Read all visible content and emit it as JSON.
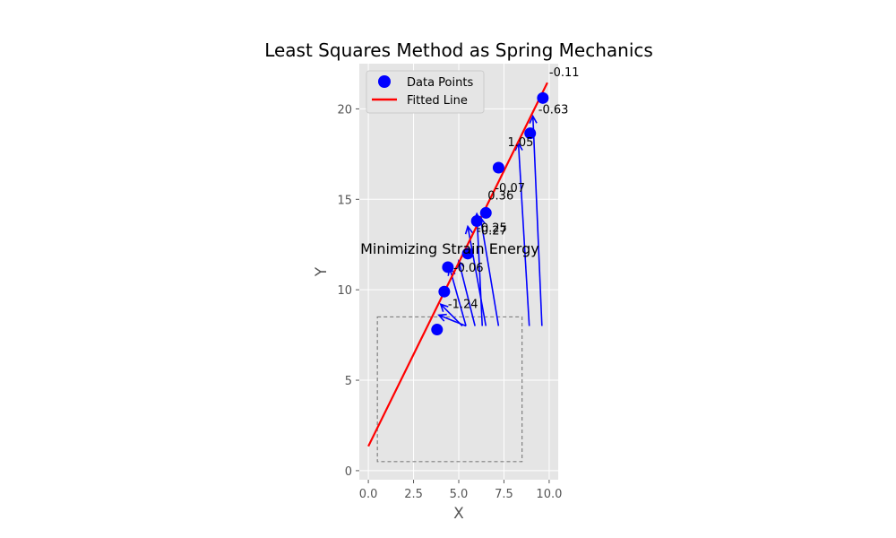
{
  "chart_data": {
    "type": "scatter",
    "title": "Least Squares Method as Spring Mechanics",
    "xlabel": "X",
    "ylabel": "Y",
    "xlim": [
      -0.5,
      10.5
    ],
    "ylim": [
      -0.5,
      22.5
    ],
    "xticks": [
      0.0,
      2.5,
      5.0,
      7.5,
      10.0
    ],
    "xtick_labels": [
      "0.0",
      "2.5",
      "5.0",
      "7.5",
      "10.0"
    ],
    "yticks": [
      0,
      5,
      10,
      15,
      20
    ],
    "ytick_labels": [
      "0",
      "5",
      "10",
      "15",
      "20"
    ],
    "grid": true,
    "legend": {
      "position": "top-left",
      "entries": [
        {
          "label": "Data Points",
          "kind": "marker",
          "color": "#0000ff"
        },
        {
          "label": "Fitted Line",
          "kind": "line",
          "color": "#ff0000"
        }
      ]
    },
    "points": [
      {
        "x": 3.8,
        "y": 7.8
      },
      {
        "x": 4.2,
        "y": 9.9
      },
      {
        "x": 4.4,
        "y": 11.25
      },
      {
        "x": 5.5,
        "y": 12.0
      },
      {
        "x": 6.0,
        "y": 13.8
      },
      {
        "x": 6.5,
        "y": 14.25
      },
      {
        "x": 7.2,
        "y": 16.75
      },
      {
        "x": 8.95,
        "y": 18.65
      },
      {
        "x": 9.65,
        "y": 20.6
      }
    ],
    "fitted_line": {
      "x": [
        0.0,
        9.9
      ],
      "y": [
        1.35,
        21.45
      ],
      "color": "#ff0000"
    },
    "springs": [
      {
        "from": [
          5.4,
          8.0
        ],
        "to": [
          3.9,
          8.6
        ]
      },
      {
        "from": [
          5.2,
          8.0
        ],
        "to": [
          4.0,
          9.2
        ]
      },
      {
        "from": [
          5.4,
          8.0
        ],
        "to": [
          4.5,
          11.2
        ]
      },
      {
        "from": [
          5.9,
          8.0
        ],
        "to": [
          5.0,
          11.6
        ]
      },
      {
        "from": [
          6.5,
          8.0
        ],
        "to": [
          5.5,
          13.5
        ]
      },
      {
        "from": [
          6.3,
          8.0
        ],
        "to": [
          6.0,
          14.2
        ]
      },
      {
        "from": [
          7.2,
          8.0
        ],
        "to": [
          6.2,
          14.0
        ]
      },
      {
        "from": [
          8.9,
          8.0
        ],
        "to": [
          8.3,
          18.1
        ]
      },
      {
        "from": [
          9.6,
          8.0
        ],
        "to": [
          9.1,
          19.6
        ]
      }
    ],
    "residual_labels": [
      {
        "text": "-1.24",
        "x": 4.4,
        "y": 9.0
      },
      {
        "text": "-0.06",
        "x": 4.7,
        "y": 11.0
      },
      {
        "text": "-0.25",
        "x": 6.0,
        "y": 13.2
      },
      {
        "text": "-0.27",
        "x": 6.0,
        "y": 13.05
      },
      {
        "text": "0.36",
        "x": 6.6,
        "y": 15.0
      },
      {
        "text": "-0.07",
        "x": 7.0,
        "y": 15.4
      },
      {
        "text": "1.05",
        "x": 7.7,
        "y": 17.95
      },
      {
        "text": "-0.63",
        "x": 9.4,
        "y": 19.75
      },
      {
        "text": "-0.11",
        "x": 10.0,
        "y": 21.8
      }
    ],
    "dashed_box": {
      "x": [
        0.5,
        8.5
      ],
      "y": [
        0.5,
        8.5
      ]
    },
    "overlay_text": {
      "text": "Minimizing Strain Energy",
      "x": 4.5,
      "y": 12.0
    }
  }
}
